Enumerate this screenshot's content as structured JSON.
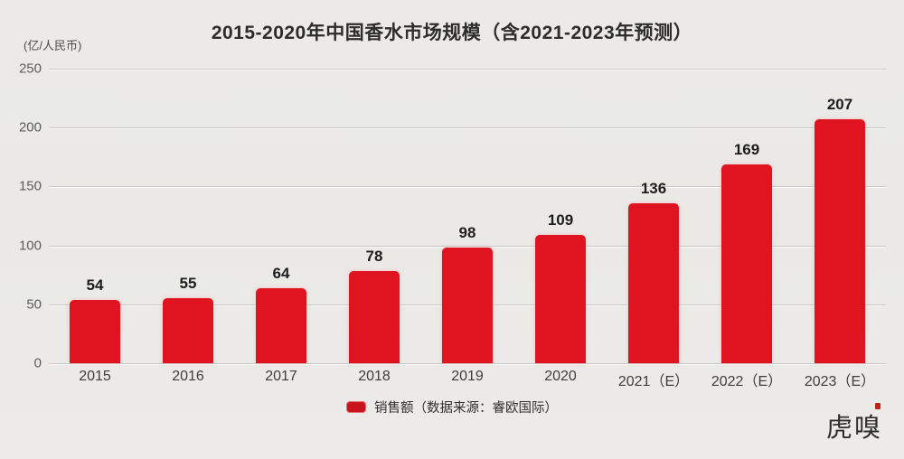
{
  "chart": {
    "title": "2015-2020年中国香水市场规模（含2021-2023年预测）",
    "unit_label": "(亿/人民币)",
    "legend_label": "销售额（数据来源：睿欧国际）"
  },
  "watermark": {
    "text": "虎嗅"
  },
  "colors": {
    "background": "#eae9e6",
    "bar": "#e01320",
    "legend_swatch": "#c8151d",
    "gridline": "#c7c6c4",
    "seal_red": "#c02419"
  },
  "chart_data": {
    "type": "bar",
    "title": "2015-2020年中国香水市场规模（含2021-2023年预测）",
    "xlabel": "",
    "ylabel": "(亿/人民币)",
    "categories": [
      "2015",
      "2016",
      "2017",
      "2018",
      "2019",
      "2020",
      "2021（E）",
      "2022（E）",
      "2023（E）"
    ],
    "values": [
      54,
      55,
      64,
      78,
      98,
      109,
      136,
      169,
      207
    ],
    "series_name": "销售额",
    "data_source": "睿欧国际",
    "ylim": [
      0,
      250
    ],
    "yticks": [
      0,
      50,
      100,
      150,
      200,
      250
    ],
    "grid": true,
    "legend_position": "bottom",
    "bar_color": "#e01320"
  }
}
